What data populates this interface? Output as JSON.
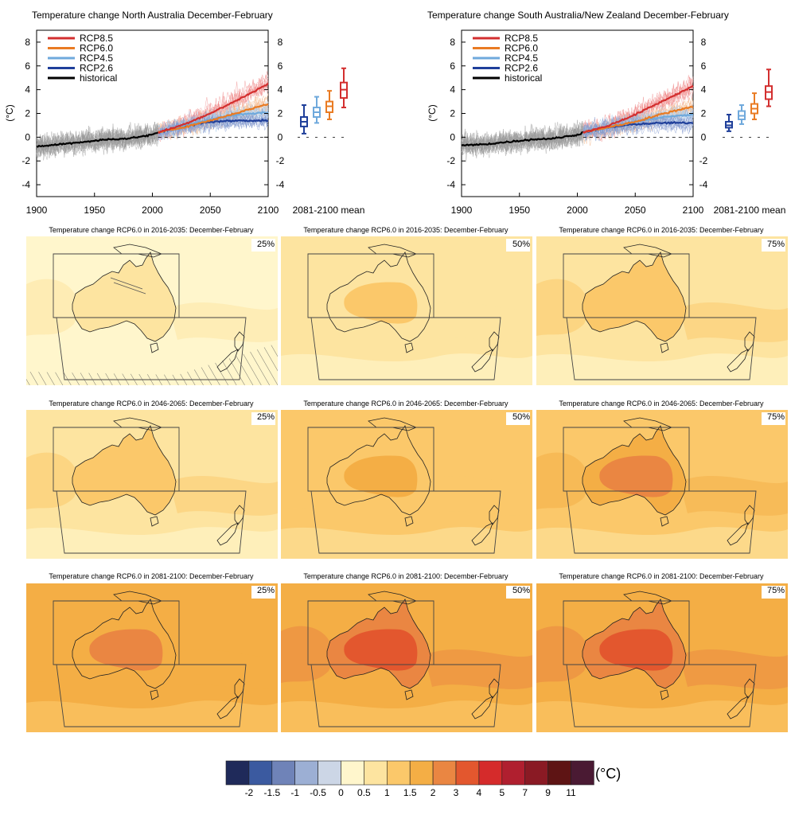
{
  "chart_data": [
    {
      "type": "line",
      "title": "Temperature change North Australia December-February",
      "ylabel": "(°C)",
      "xlim": [
        1900,
        2100
      ],
      "ylim": [
        -5,
        9
      ],
      "x_ticks": [
        "1900",
        "1950",
        "2000",
        "2050",
        "2100"
      ],
      "y_ticks": [
        "-4",
        "-2",
        "0",
        "2",
        "4",
        "6",
        "8"
      ],
      "legend": {
        "position": "top-left",
        "entries": [
          "RCP8.5",
          "RCP6.0",
          "RCP4.5",
          "RCP2.6",
          "historical"
        ]
      },
      "series": [
        {
          "name": "historical",
          "color": "#000000",
          "x": [
            1900,
            1920,
            1940,
            1960,
            1980,
            2000,
            2005
          ],
          "y": [
            -0.8,
            -0.6,
            -0.4,
            -0.2,
            -0.1,
            0.2,
            0.4
          ]
        },
        {
          "name": "RCP2.6",
          "color": "#1f3f9a",
          "x": [
            2005,
            2025,
            2050,
            2075,
            2100
          ],
          "y": [
            0.4,
            0.9,
            1.3,
            1.4,
            1.4
          ]
        },
        {
          "name": "RCP4.5",
          "color": "#6fa9dc",
          "x": [
            2005,
            2025,
            2050,
            2075,
            2100
          ],
          "y": [
            0.4,
            0.9,
            1.5,
            1.9,
            2.1
          ]
        },
        {
          "name": "RCP6.0",
          "color": "#e97b23",
          "x": [
            2005,
            2025,
            2050,
            2075,
            2100
          ],
          "y": [
            0.4,
            0.8,
            1.4,
            2.1,
            2.8
          ]
        },
        {
          "name": "RCP8.5",
          "color": "#d32f2f",
          "x": [
            2005,
            2025,
            2050,
            2075,
            2100
          ],
          "y": [
            0.4,
            1.0,
            2.0,
            3.2,
            4.5
          ]
        }
      ],
      "boxplots": {
        "label": "2081-2100 mean",
        "boxes": [
          {
            "name": "RCP2.6",
            "color": "#1f3f9a",
            "whisker_low": 0.3,
            "q1": 0.9,
            "median": 1.3,
            "q3": 1.7,
            "whisker_high": 2.7
          },
          {
            "name": "RCP4.5",
            "color": "#6fa9dc",
            "whisker_low": 1.2,
            "q1": 1.7,
            "median": 2.1,
            "q3": 2.5,
            "whisker_high": 3.4
          },
          {
            "name": "RCP6.0",
            "color": "#e97b23",
            "whisker_low": 1.5,
            "q1": 2.1,
            "median": 2.6,
            "q3": 3.0,
            "whisker_high": 3.9
          },
          {
            "name": "RCP8.5",
            "color": "#d32f2f",
            "whisker_low": 2.5,
            "q1": 3.3,
            "median": 4.0,
            "q3": 4.6,
            "whisker_high": 5.8
          }
        ]
      }
    },
    {
      "type": "line",
      "title": "Temperature change South Australia/New Zealand December-February",
      "ylabel": "(°C)",
      "xlim": [
        1900,
        2100
      ],
      "ylim": [
        -5,
        9
      ],
      "x_ticks": [
        "1900",
        "1950",
        "2000",
        "2050",
        "2100"
      ],
      "y_ticks": [
        "-4",
        "-2",
        "0",
        "2",
        "4",
        "6",
        "8"
      ],
      "legend": {
        "position": "top-left",
        "entries": [
          "RCP8.5",
          "RCP6.0",
          "RCP4.5",
          "RCP2.6",
          "historical"
        ]
      },
      "series": [
        {
          "name": "historical",
          "color": "#000000",
          "x": [
            1900,
            1920,
            1940,
            1960,
            1980,
            2000,
            2005
          ],
          "y": [
            -0.7,
            -0.6,
            -0.4,
            -0.2,
            -0.1,
            0.2,
            0.4
          ]
        },
        {
          "name": "RCP2.6",
          "color": "#1f3f9a",
          "x": [
            2005,
            2025,
            2050,
            2075,
            2100
          ],
          "y": [
            0.4,
            0.8,
            1.1,
            1.2,
            1.2
          ]
        },
        {
          "name": "RCP4.5",
          "color": "#6fa9dc",
          "x": [
            2005,
            2025,
            2050,
            2075,
            2100
          ],
          "y": [
            0.4,
            0.8,
            1.3,
            1.7,
            1.9
          ]
        },
        {
          "name": "RCP6.0",
          "color": "#e97b23",
          "x": [
            2005,
            2025,
            2050,
            2075,
            2100
          ],
          "y": [
            0.4,
            0.8,
            1.3,
            2.0,
            2.6
          ]
        },
        {
          "name": "RCP8.5",
          "color": "#d32f2f",
          "x": [
            2005,
            2025,
            2050,
            2075,
            2100
          ],
          "y": [
            0.4,
            0.9,
            1.9,
            3.1,
            4.3
          ]
        }
      ],
      "boxplots": {
        "label": "2081-2100 mean",
        "boxes": [
          {
            "name": "RCP2.6",
            "color": "#1f3f9a",
            "whisker_low": 0.5,
            "q1": 0.8,
            "median": 1.0,
            "q3": 1.3,
            "whisker_high": 1.9
          },
          {
            "name": "RCP4.5",
            "color": "#6fa9dc",
            "whisker_low": 1.1,
            "q1": 1.5,
            "median": 1.8,
            "q3": 2.2,
            "whisker_high": 2.7
          },
          {
            "name": "RCP6.0",
            "color": "#e97b23",
            "whisker_low": 1.5,
            "q1": 2.0,
            "median": 2.4,
            "q3": 2.8,
            "whisker_high": 3.7
          },
          {
            "name": "RCP8.5",
            "color": "#d32f2f",
            "whisker_low": 2.6,
            "q1": 3.2,
            "median": 3.8,
            "q3": 4.3,
            "whisker_high": 5.7
          }
        ]
      }
    }
  ],
  "maps": {
    "rows": [
      {
        "title": "Temperature change RCP6.0 in 2016-2035: December-February",
        "panels": [
          {
            "percentile": "25%",
            "background_bin": 5,
            "land_bin": 6,
            "inner_bin": 6
          },
          {
            "percentile": "50%",
            "background_bin": 6,
            "land_bin": 6,
            "inner_bin": 7
          },
          {
            "percentile": "75%",
            "background_bin": 6,
            "land_bin": 7,
            "inner_bin": 7
          }
        ]
      },
      {
        "title": "Temperature change RCP6.0 in 2046-2065: December-February",
        "panels": [
          {
            "percentile": "25%",
            "background_bin": 6,
            "land_bin": 7,
            "inner_bin": 7
          },
          {
            "percentile": "50%",
            "background_bin": 7,
            "land_bin": 7,
            "inner_bin": 8
          },
          {
            "percentile": "75%",
            "background_bin": 7,
            "land_bin": 8,
            "inner_bin": 9
          }
        ]
      },
      {
        "title": "Temperature change RCP6.0 in 2081-2100: December-February",
        "panels": [
          {
            "percentile": "25%",
            "background_bin": 8,
            "land_bin": 8,
            "inner_bin": 9
          },
          {
            "percentile": "50%",
            "background_bin": 8,
            "land_bin": 9,
            "inner_bin": 10
          },
          {
            "percentile": "75%",
            "background_bin": 8,
            "land_bin": 9,
            "inner_bin": 10
          }
        ]
      }
    ]
  },
  "colorbar": {
    "unit": "(°C)",
    "colors": [
      "#1f2a5a",
      "#3b5aa0",
      "#6f83b8",
      "#9cafd4",
      "#ccd6e6",
      "#fff6cc",
      "#fde4a0",
      "#fbc86a",
      "#f4ae45",
      "#ea8642",
      "#e3572e",
      "#d52b2b",
      "#b01f2f",
      "#8a1a24",
      "#5e1414",
      "#4a1a33"
    ],
    "tick_labels": [
      "-2",
      "-1.5",
      "-1",
      "-0.5",
      "0",
      "0.5",
      "1",
      "1.5",
      "2",
      "3",
      "4",
      "5",
      "7",
      "9",
      "11"
    ]
  }
}
